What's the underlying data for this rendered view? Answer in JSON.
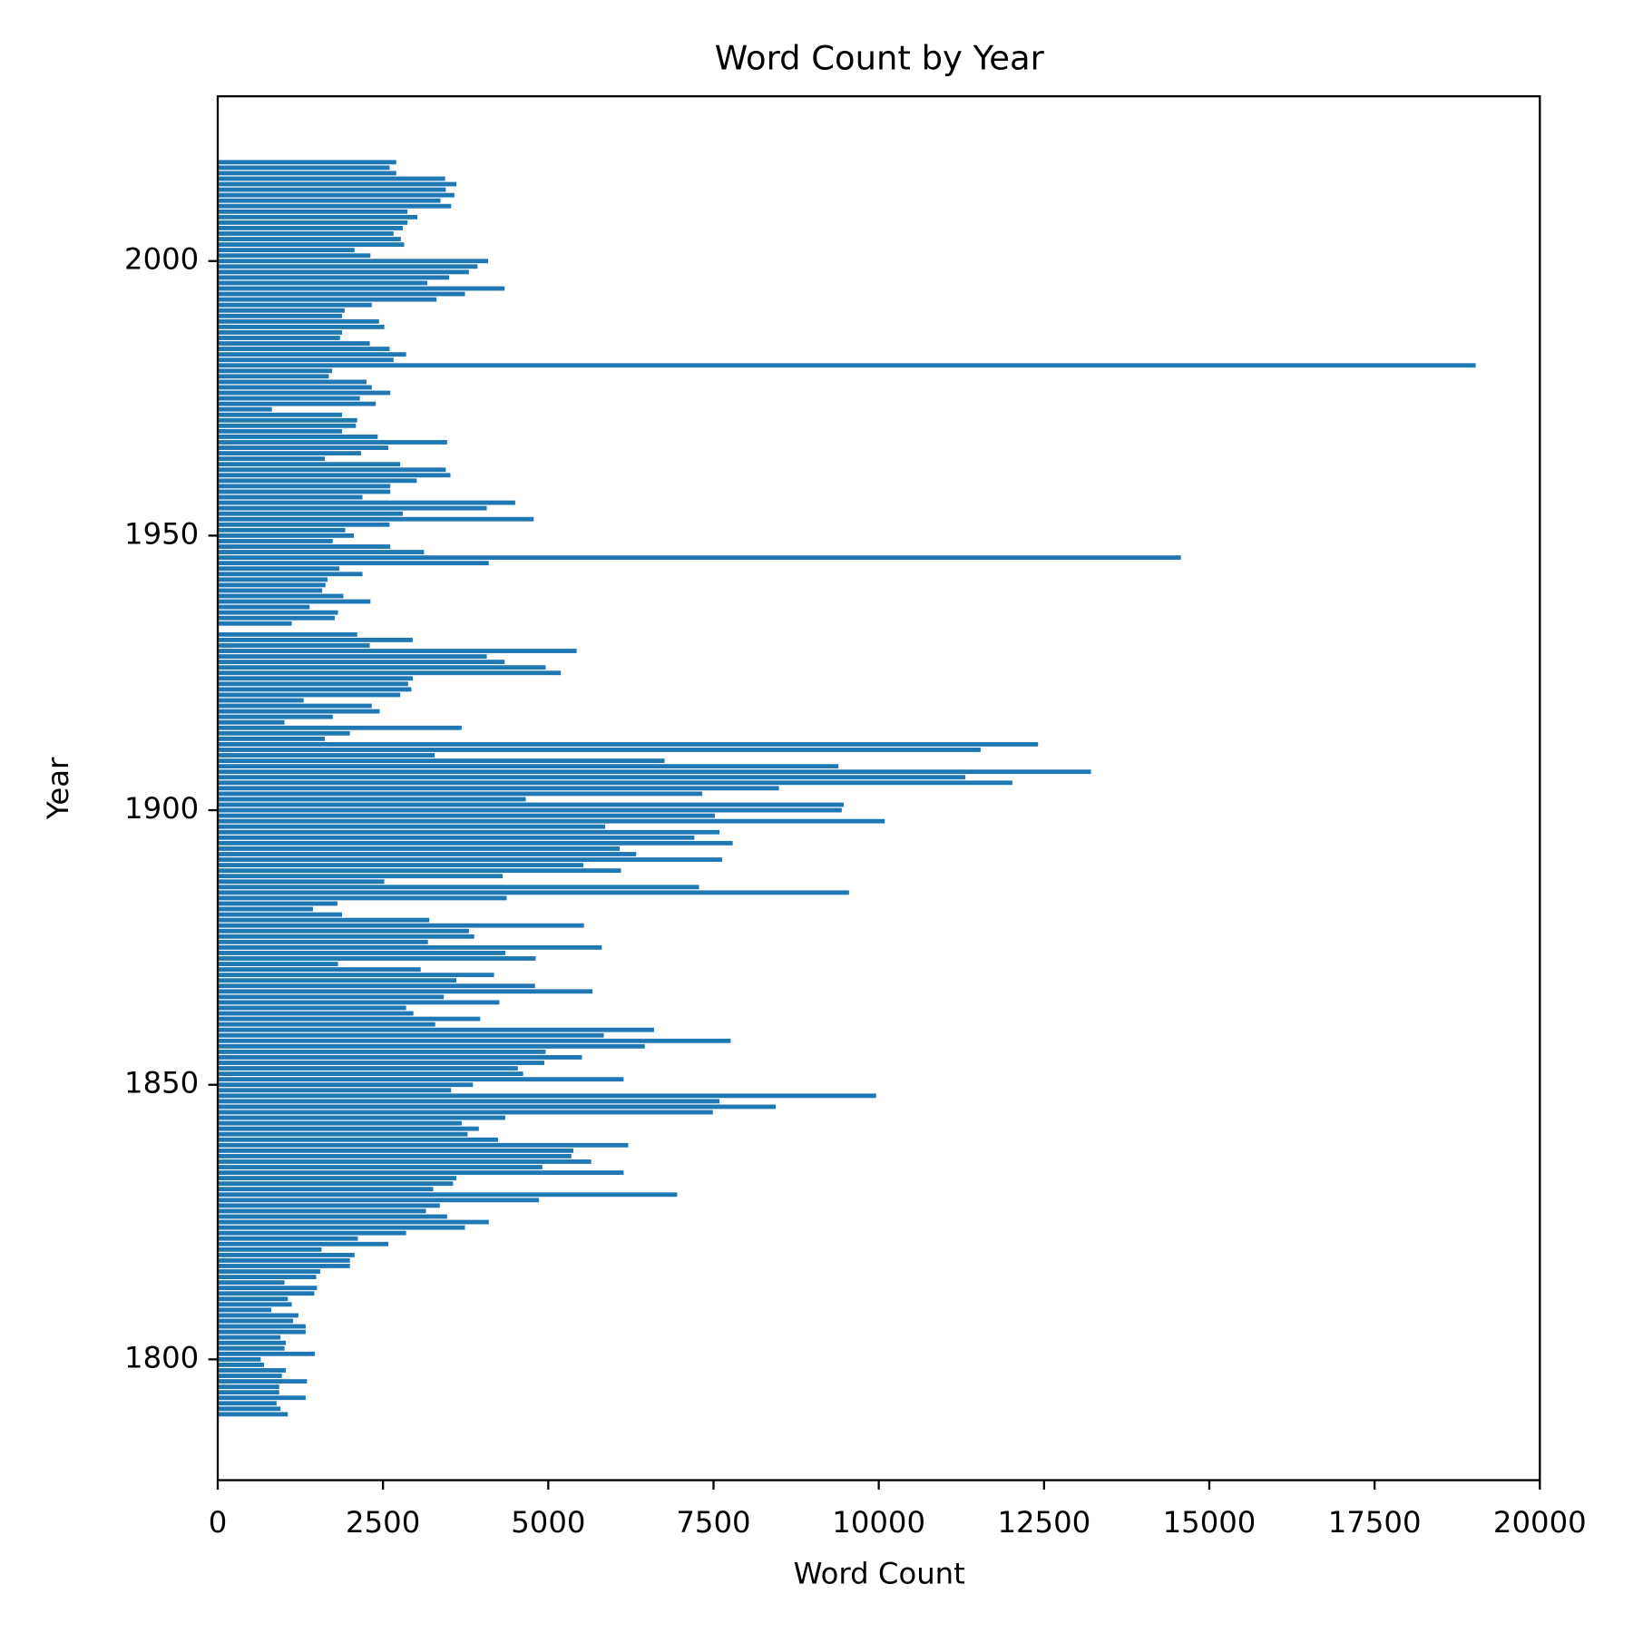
{
  "chart_data": {
    "type": "barh",
    "title": "Word Count by Year",
    "xlabel": "Word Count",
    "ylabel": "Year",
    "color": "#1f77b4",
    "xlim": [
      0,
      20000
    ],
    "xticks": [
      0,
      2500,
      5000,
      7500,
      10000,
      12500,
      15000,
      17500,
      20000
    ],
    "ylim": [
      1778,
      2030
    ],
    "yticks": [
      1800,
      1850,
      1900,
      1950,
      2000
    ],
    "x": [
      2018,
      2017,
      2016,
      2015,
      2014,
      2013,
      2012,
      2011,
      2010,
      2009,
      2008,
      2007,
      2006,
      2005,
      2004,
      2003,
      2002,
      2001,
      2000,
      1999,
      1998,
      1997,
      1996,
      1995,
      1994,
      1993,
      1992,
      1991,
      1990,
      1989,
      1988,
      1987,
      1986,
      1985,
      1984,
      1983,
      1982,
      1981,
      1980,
      1979,
      1978,
      1977,
      1976,
      1975,
      1974,
      1973,
      1972,
      1971,
      1970,
      1969,
      1968,
      1967,
      1966,
      1965,
      1964,
      1963,
      1962,
      1961,
      1960,
      1959,
      1958,
      1957,
      1956,
      1955,
      1954,
      1953,
      1952,
      1951,
      1950,
      1949,
      1948,
      1947,
      1946,
      1945,
      1944,
      1943,
      1942,
      1941,
      1940,
      1939,
      1938,
      1937,
      1936,
      1935,
      1934,
      1932,
      1931,
      1930,
      1929,
      1928,
      1927,
      1926,
      1925,
      1924,
      1923,
      1922,
      1921,
      1920,
      1919,
      1918,
      1917,
      1916,
      1915,
      1914,
      1913,
      1912,
      1911,
      1910,
      1909,
      1908,
      1907,
      1906,
      1905,
      1904,
      1903,
      1902,
      1901,
      1900,
      1899,
      1898,
      1897,
      1896,
      1895,
      1894,
      1893,
      1892,
      1891,
      1890,
      1889,
      1888,
      1887,
      1886,
      1885,
      1884,
      1883,
      1882,
      1881,
      1880,
      1879,
      1878,
      1877,
      1876,
      1875,
      1874,
      1873,
      1872,
      1871,
      1870,
      1869,
      1868,
      1867,
      1866,
      1865,
      1864,
      1863,
      1862,
      1861,
      1860,
      1859,
      1858,
      1857,
      1856,
      1855,
      1854,
      1853,
      1852,
      1851,
      1850,
      1849,
      1848,
      1847,
      1846,
      1845,
      1844,
      1843,
      1842,
      1841,
      1840,
      1839,
      1838,
      1837,
      1836,
      1835,
      1834,
      1833,
      1832,
      1831,
      1830,
      1829,
      1828,
      1827,
      1826,
      1825,
      1824,
      1823,
      1822,
      1821,
      1820,
      1819,
      1818,
      1817,
      1816,
      1815,
      1814,
      1813,
      1812,
      1811,
      1810,
      1809,
      1808,
      1807,
      1806,
      1805,
      1804,
      1803,
      1802,
      1801,
      1800,
      1799,
      1798,
      1797,
      1796,
      1795,
      1794,
      1793,
      1792,
      1791,
      1790
    ],
    "values": [
      2700,
      2600,
      2700,
      3440,
      3610,
      3450,
      3580,
      3370,
      3530,
      2870,
      3020,
      2870,
      2800,
      2660,
      2770,
      2820,
      2070,
      2310,
      4090,
      3930,
      3800,
      3500,
      3170,
      4340,
      3740,
      3310,
      2330,
      1920,
      1880,
      2440,
      2520,
      1880,
      1850,
      2300,
      2600,
      2850,
      2660,
      19030,
      1730,
      1680,
      2250,
      2330,
      2610,
      2150,
      2390,
      820,
      1880,
      2110,
      2090,
      1880,
      2420,
      3470,
      2580,
      2170,
      1620,
      2760,
      3450,
      3520,
      3010,
      2610,
      2610,
      2190,
      4500,
      4070,
      2800,
      4780,
      2600,
      1930,
      2060,
      1740,
      2610,
      3120,
      14570,
      4100,
      1840,
      2190,
      1660,
      1630,
      1580,
      1900,
      2310,
      1390,
      1820,
      1770,
      1120,
      2110,
      2950,
      2300,
      5430,
      4070,
      4340,
      4960,
      5190,
      2950,
      2880,
      2930,
      2760,
      1300,
      2330,
      2450,
      1740,
      1010,
      3690,
      2000,
      1620,
      12410,
      11540,
      3280,
      6760,
      9390,
      13210,
      11310,
      12020,
      8490,
      7330,
      4660,
      9470,
      9440,
      7520,
      10090,
      5860,
      7590,
      7210,
      7790,
      6080,
      6330,
      7630,
      5530,
      6100,
      4310,
      2520,
      7280,
      9550,
      4370,
      1810,
      1440,
      1880,
      3200,
      5540,
      3800,
      3880,
      3180,
      5810,
      4350,
      4810,
      1820,
      3070,
      4180,
      3610,
      4800,
      5670,
      3420,
      4260,
      2850,
      2960,
      3970,
      3290,
      6600,
      5840,
      7760,
      6460,
      4960,
      5510,
      4940,
      4540,
      4620,
      6140,
      3860,
      3530,
      9960,
      7590,
      8440,
      7490,
      4350,
      3690,
      3950,
      3780,
      4240,
      6210,
      5380,
      5350,
      5650,
      4910,
      6140,
      3610,
      3560,
      3260,
      6950,
      4860,
      3360,
      3150,
      3470,
      4100,
      3740,
      2850,
      2120,
      2580,
      1570,
      2070,
      2000,
      2000,
      1550,
      1490,
      1010,
      1500,
      1460,
      1060,
      1120,
      810,
      1220,
      1140,
      1330,
      1330,
      950,
      1030,
      1010,
      1470,
      650,
      700,
      1030,
      970,
      1350,
      930,
      930,
      1330,
      890,
      950,
      1060
    ]
  }
}
